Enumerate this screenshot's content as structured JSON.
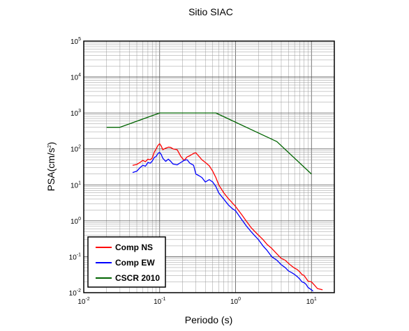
{
  "chart_data": {
    "type": "line",
    "title": "Sitio SIAC",
    "xlabel": "Periodo (s)",
    "ylabel": {
      "base": "PSA(cm/s",
      "sup": "2",
      "tail": ")"
    },
    "x_scale": "log",
    "y_scale": "log",
    "xlim": [
      0.01,
      20
    ],
    "ylim": [
      0.01,
      100000
    ],
    "grid": true,
    "legend_position": "bottom-left",
    "x_ticks": [
      {
        "base": "10",
        "exp": "-2"
      },
      {
        "base": "10",
        "exp": "-1"
      },
      {
        "base": "10",
        "exp": "0"
      },
      {
        "base": "10",
        "exp": "1"
      }
    ],
    "y_ticks": [
      {
        "base": "10",
        "exp": "-2"
      },
      {
        "base": "10",
        "exp": "-1"
      },
      {
        "base": "10",
        "exp": "0"
      },
      {
        "base": "10",
        "exp": "1"
      },
      {
        "base": "10",
        "exp": "2"
      },
      {
        "base": "10",
        "exp": "3"
      },
      {
        "base": "10",
        "exp": "4"
      },
      {
        "base": "10",
        "exp": "5"
      }
    ],
    "series": [
      {
        "name": "Comp NS",
        "color": "#ff0000",
        "x": [
          0.044,
          0.05,
          0.055,
          0.06,
          0.065,
          0.07,
          0.075,
          0.08,
          0.085,
          0.09,
          0.095,
          0.1,
          0.105,
          0.11,
          0.12,
          0.13,
          0.14,
          0.15,
          0.17,
          0.19,
          0.21,
          0.23,
          0.25,
          0.28,
          0.3,
          0.33,
          0.36,
          0.4,
          0.45,
          0.5,
          0.55,
          0.6,
          0.7,
          0.8,
          0.9,
          1.0,
          1.2,
          1.4,
          1.6,
          1.8,
          2.0,
          2.3,
          2.6,
          3.0,
          3.5,
          4.0,
          4.5,
          5.0,
          5.5,
          6.0,
          6.5,
          7.0,
          7.5,
          8.0,
          8.5,
          9.0,
          10.0,
          11.0,
          12.0,
          13.0,
          14.0
        ],
        "y": [
          35,
          37,
          42,
          48,
          44,
          52,
          50,
          56,
          82,
          100,
          125,
          140,
          120,
          95,
          105,
          112,
          110,
          100,
          95,
          62,
          48,
          60,
          65,
          75,
          78,
          62,
          50,
          42,
          34,
          24,
          16,
          10,
          6,
          4.2,
          3.2,
          2.5,
          1.5,
          0.95,
          0.65,
          0.5,
          0.4,
          0.3,
          0.22,
          0.17,
          0.12,
          0.09,
          0.08,
          0.065,
          0.055,
          0.048,
          0.044,
          0.038,
          0.032,
          0.03,
          0.025,
          0.021,
          0.02,
          0.016,
          0.013,
          0.0125,
          0.012
        ]
      },
      {
        "name": "Comp EW",
        "color": "#0000ff",
        "x": [
          0.044,
          0.05,
          0.055,
          0.06,
          0.065,
          0.07,
          0.075,
          0.08,
          0.085,
          0.09,
          0.095,
          0.1,
          0.105,
          0.11,
          0.12,
          0.13,
          0.14,
          0.15,
          0.17,
          0.19,
          0.21,
          0.23,
          0.25,
          0.28,
          0.3,
          0.33,
          0.36,
          0.4,
          0.45,
          0.5,
          0.55,
          0.6,
          0.7,
          0.8,
          0.9,
          1.0,
          1.2,
          1.4,
          1.6,
          1.8,
          2.0,
          2.3,
          2.6,
          3.0,
          3.5,
          4.0,
          4.5,
          5.0,
          5.5,
          6.0,
          6.5,
          7.0,
          7.5,
          8.0,
          8.5,
          9.0,
          10.0,
          10.5
        ],
        "y": [
          22,
          24,
          30,
          35,
          33,
          42,
          40,
          46,
          58,
          62,
          75,
          80,
          70,
          55,
          45,
          52,
          45,
          38,
          36,
          42,
          48,
          50,
          40,
          35,
          20,
          18,
          16,
          12,
          14,
          12,
          9,
          6,
          4,
          2.8,
          2.2,
          1.9,
          1.1,
          0.7,
          0.5,
          0.38,
          0.3,
          0.2,
          0.15,
          0.1,
          0.08,
          0.06,
          0.05,
          0.04,
          0.036,
          0.032,
          0.028,
          0.024,
          0.02,
          0.019,
          0.017,
          0.014,
          0.012,
          0.011
        ]
      },
      {
        "name": "CSCR 2010",
        "color": "#006400",
        "x": [
          0.02,
          0.03,
          0.1,
          0.55,
          3.5,
          10
        ],
        "y": [
          400,
          400,
          1000,
          1000,
          160,
          20
        ]
      }
    ]
  }
}
